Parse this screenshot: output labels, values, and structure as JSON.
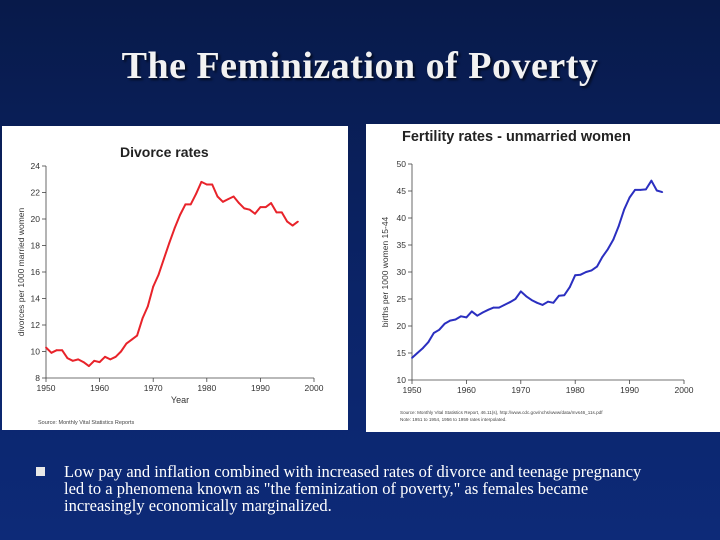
{
  "slide": {
    "title": "The Feminization of Poverty",
    "bullet_text": "Low pay and inflation combined with increased rates of divorce and teenage pregnancy led to a phenomena known as \"the feminization of poverty,\" as females became increasingly economically marginalized."
  },
  "colors": {
    "background": "#0b2468",
    "divorce_line": "#e8232a",
    "fertility_line": "#2b2fc0"
  },
  "chart_data": [
    {
      "type": "line",
      "title": "Divorce rates",
      "xlabel": "Year",
      "ylabel": "divorces per 1000 married women",
      "xlim": [
        1950,
        2000
      ],
      "ylim": [
        8,
        24
      ],
      "xticks": [
        1950,
        1960,
        1970,
        1980,
        1990,
        2000
      ],
      "yticks": [
        8,
        10,
        12,
        14,
        16,
        18,
        20,
        22,
        24
      ],
      "grid": false,
      "source": "Source: Monthly Vital Statistics Reports",
      "series": [
        {
          "x": [
            1950,
            1951,
            1952,
            1953,
            1954,
            1955,
            1956,
            1957,
            1958,
            1959,
            1960,
            1961,
            1962,
            1963,
            1964,
            1965,
            1966,
            1967,
            1968,
            1969,
            1970,
            1971,
            1972,
            1973,
            1974,
            1975,
            1976,
            1977,
            1978,
            1979,
            1980,
            1981,
            1982,
            1983,
            1984,
            1985,
            1986,
            1987,
            1988,
            1989,
            1990,
            1991,
            1992,
            1993,
            1994,
            1995,
            1996,
            1997
          ],
          "y": [
            10.3,
            9.9,
            10.1,
            10.1,
            9.5,
            9.3,
            9.4,
            9.2,
            8.9,
            9.3,
            9.2,
            9.6,
            9.4,
            9.6,
            10.0,
            10.6,
            10.9,
            11.2,
            12.5,
            13.4,
            14.9,
            15.8,
            17.0,
            18.2,
            19.3,
            20.3,
            21.1,
            21.1,
            21.9,
            22.8,
            22.6,
            22.6,
            21.7,
            21.3,
            21.5,
            21.7,
            21.2,
            20.8,
            20.7,
            20.4,
            20.9,
            20.9,
            21.2,
            20.5,
            20.5,
            19.8,
            19.5,
            19.8
          ]
        }
      ]
    },
    {
      "type": "line",
      "title": "Fertility rates - unmarried women",
      "xlabel": "",
      "ylabel": "births per 1000 women 15-44",
      "xlim": [
        1950,
        2000
      ],
      "ylim": [
        10,
        50
      ],
      "xticks": [
        1950,
        1960,
        1970,
        1980,
        1990,
        2000
      ],
      "yticks": [
        10,
        15,
        20,
        25,
        30,
        35,
        40,
        45,
        50
      ],
      "grid": false,
      "source_lines": [
        "Source: Monthly Vital Statistics Report, 46.11(s), http://www.cdc.gov/nchs/www/data/mvs46_11s.pdf",
        "Note: 1951 to 1954, 1956 to 1959 rates interpolated."
      ],
      "series": [
        {
          "x": [
            1950,
            1951,
            1952,
            1953,
            1954,
            1955,
            1956,
            1957,
            1958,
            1959,
            1960,
            1961,
            1962,
            1963,
            1964,
            1965,
            1966,
            1967,
            1968,
            1969,
            1970,
            1971,
            1972,
            1973,
            1974,
            1975,
            1976,
            1977,
            1978,
            1979,
            1980,
            1981,
            1982,
            1983,
            1984,
            1985,
            1986,
            1987,
            1988,
            1989,
            1990,
            1991,
            1992,
            1993,
            1994,
            1995,
            1996
          ],
          "y": [
            14.1,
            15.0,
            15.9,
            17.0,
            18.7,
            19.3,
            20.4,
            21.0,
            21.2,
            21.8,
            21.6,
            22.7,
            21.9,
            22.5,
            23.0,
            23.4,
            23.4,
            23.9,
            24.4,
            25.0,
            26.4,
            25.5,
            24.8,
            24.3,
            23.9,
            24.5,
            24.3,
            25.6,
            25.7,
            27.2,
            29.4,
            29.5,
            30.0,
            30.3,
            31.0,
            32.8,
            34.2,
            36.0,
            38.5,
            41.6,
            43.8,
            45.2,
            45.2,
            45.3,
            46.9,
            45.1,
            44.8
          ]
        }
      ]
    }
  ]
}
